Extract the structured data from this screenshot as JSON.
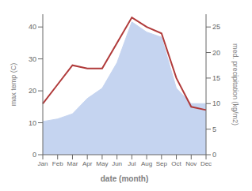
{
  "chart_data": {
    "type": "line",
    "x_label": "date (month)",
    "y_label": "max temp (C)",
    "y2_label": "med. precipitation (kg/m2)",
    "categories": [
      "Jan",
      "Feb",
      "Mar",
      "Apr",
      "May",
      "Jun",
      "Jul",
      "Aug",
      "Sep",
      "Oct",
      "Nov",
      "Dec"
    ],
    "series": [
      {
        "name": "precip",
        "type": "area",
        "axis": "y2",
        "color": "#c5d4f0",
        "values": [
          6.5,
          7,
          8,
          11,
          13,
          18,
          26,
          24,
          23,
          13,
          10,
          10
        ]
      },
      {
        "name": "temp",
        "type": "line",
        "axis": "y",
        "color": "#b03a3a",
        "values": [
          16,
          22,
          28,
          27,
          27,
          35,
          43,
          40,
          38,
          24,
          15,
          14
        ]
      }
    ],
    "ylim": [
      0,
      44
    ],
    "yticks": [
      0,
      10,
      20,
      30,
      40
    ],
    "y2lim": [
      0,
      27.5
    ],
    "y2ticks": [
      0,
      5,
      10,
      15,
      20,
      25
    ],
    "grid": false
  }
}
